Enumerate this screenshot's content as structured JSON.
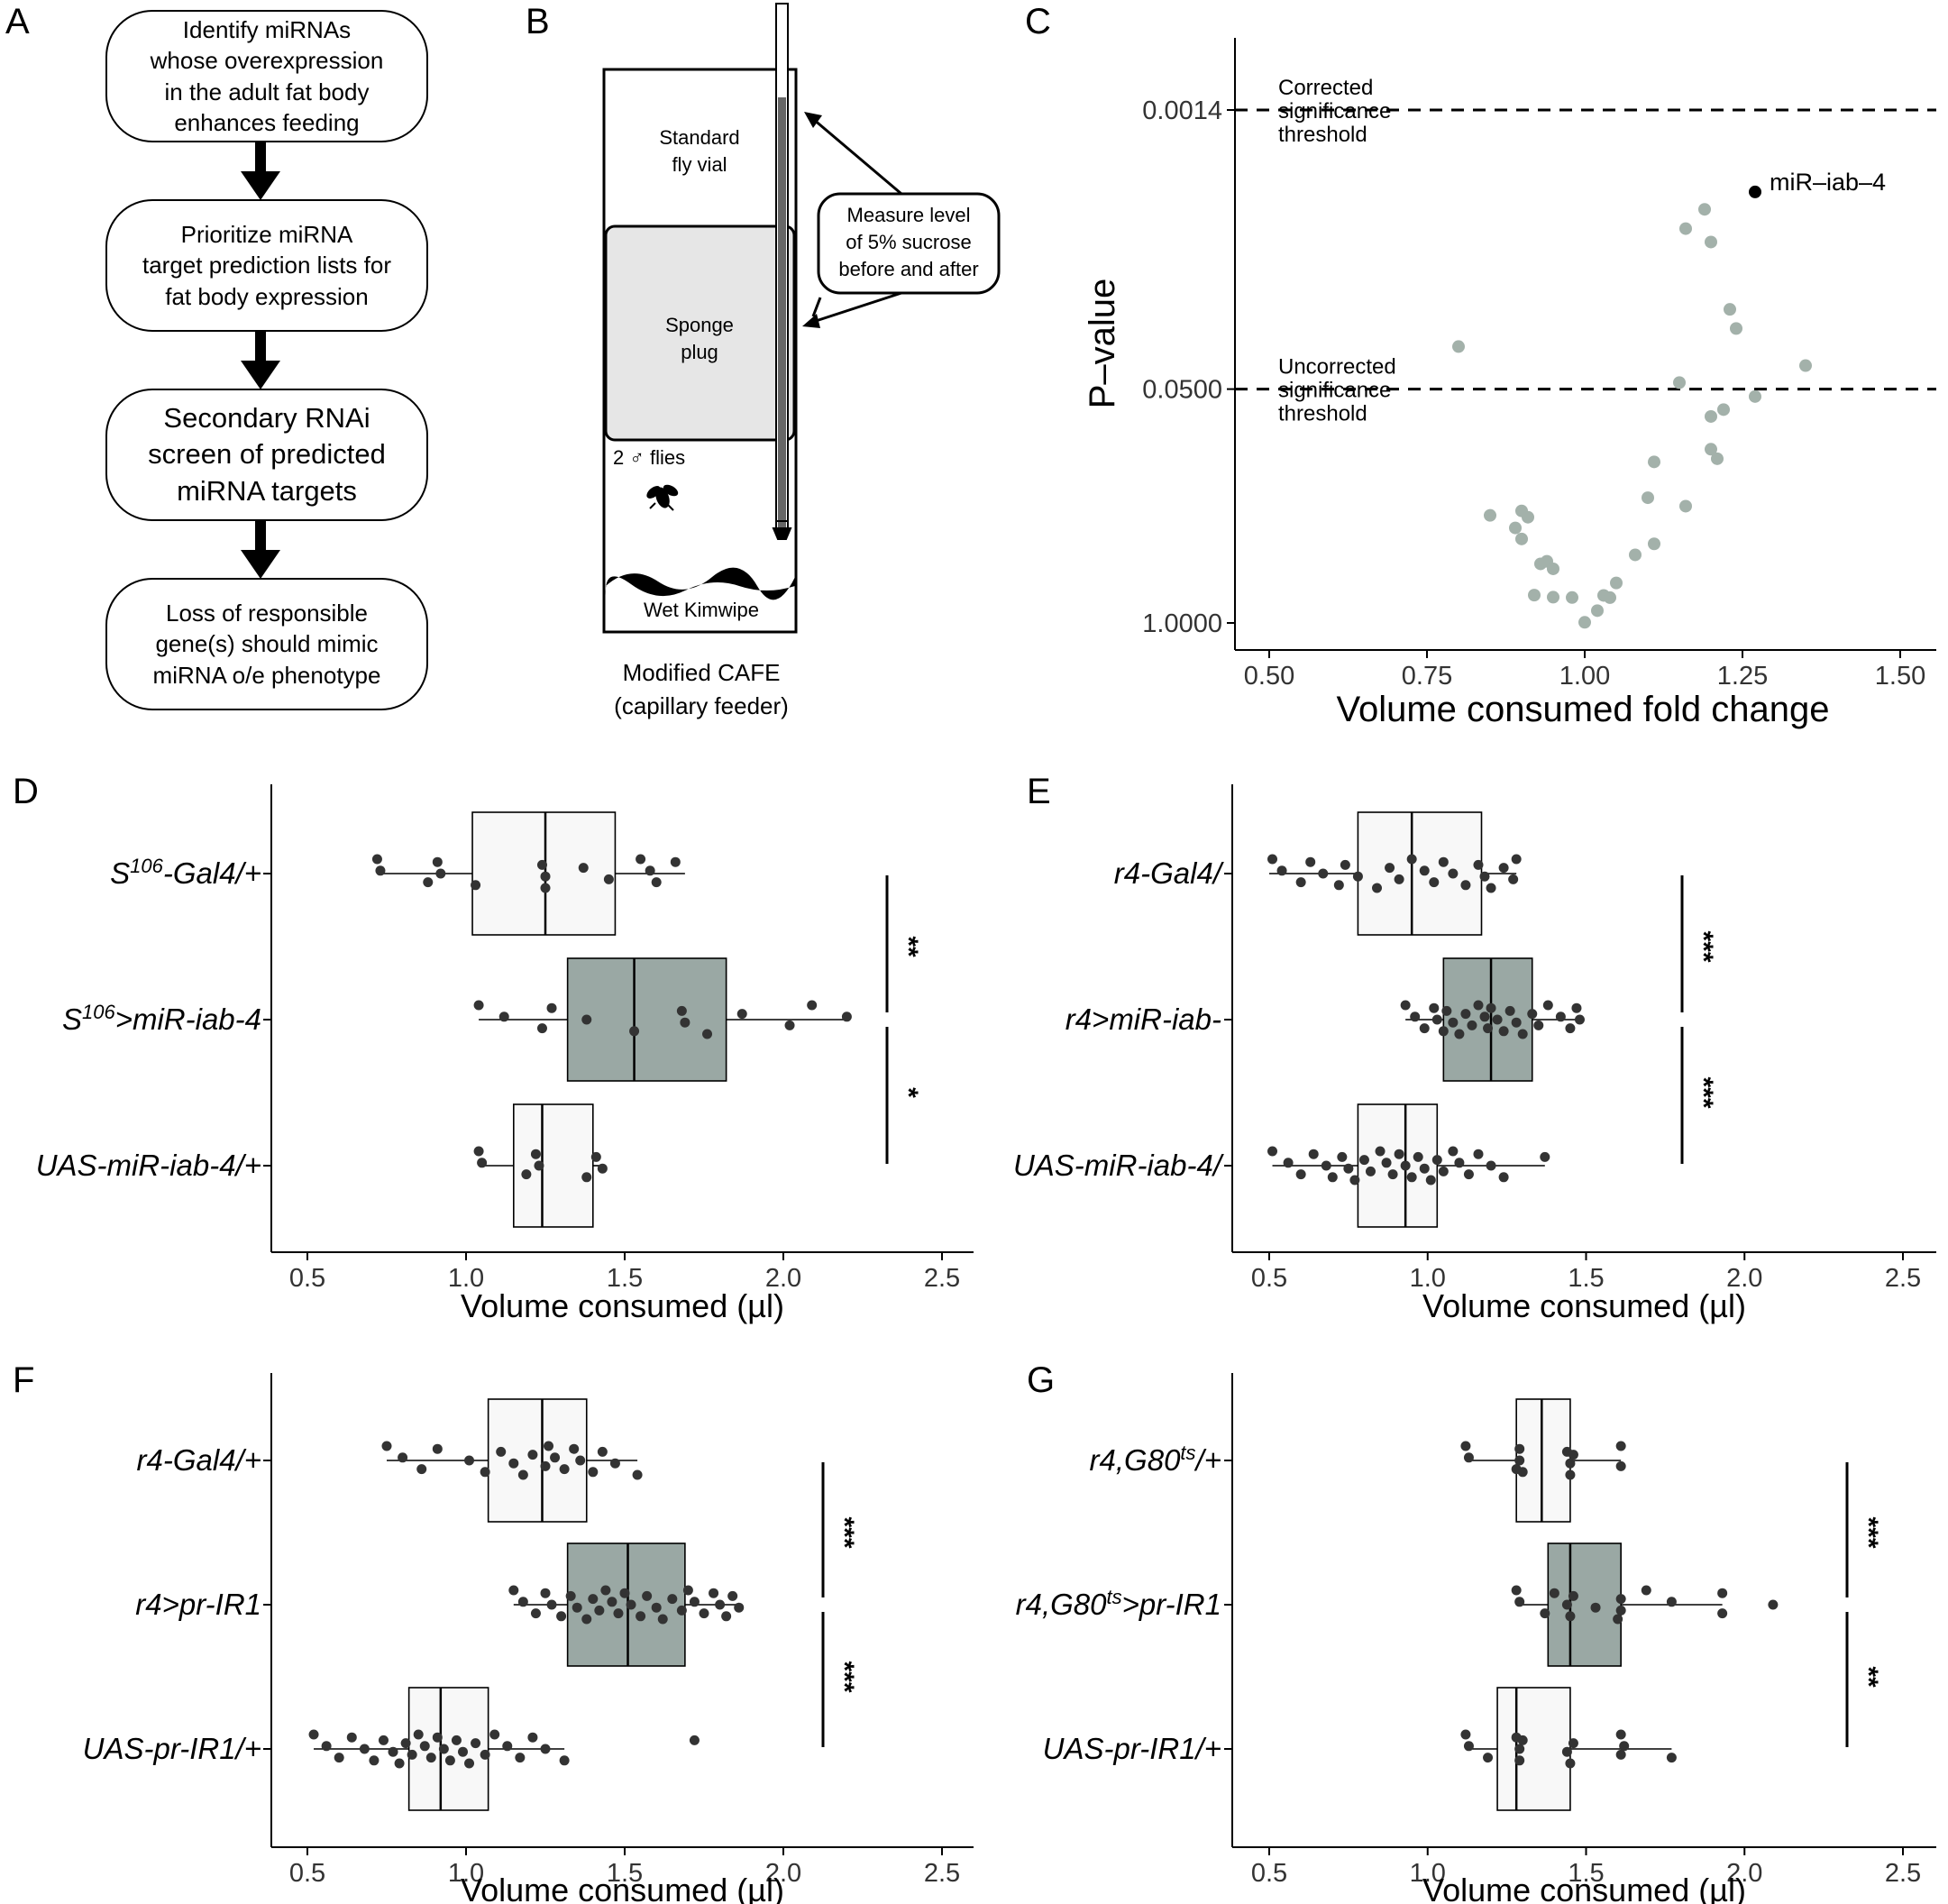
{
  "panels": {
    "A": "A",
    "B": "B",
    "C": "C",
    "D": "D",
    "E": "E",
    "F": "F",
    "G": "G"
  },
  "panel_a": {
    "steps": [
      "Identify miRNAs\nwhose overexpression\nin the adult fat body\nenhances feeding",
      "Prioritize miRNA\ntarget prediction lists for\nfat body expression",
      "Secondary RNAi\nscreen of predicted\nmiRNA targets",
      "Loss of responsible\ngene(s) should mimic\nmiRNA o/e phenotype"
    ]
  },
  "panel_b": {
    "vial_label": [
      "Standard",
      "fly vial"
    ],
    "sponge_label": [
      "Sponge",
      "plug"
    ],
    "callout": [
      "Measure level",
      "of 5% sucrose",
      "before and after"
    ],
    "flies_label": "2 ♂ flies",
    "kimwipe_label": "Wet Kimwipe",
    "caption": [
      "Modified CAFE",
      "(capillary feeder)"
    ]
  },
  "colors": {
    "scatter_point": "#a3b1aa",
    "highlight_point": "#000000",
    "gray_box": "#9aa8a4",
    "light_box": "#f8f8f8",
    "jitter_point": "#333333"
  },
  "chart_data": [
    {
      "id": "C",
      "type": "scatter",
      "xlabel": "Volume consumed fold change",
      "ylabel": "P–value",
      "xlim": [
        0.5,
        1.5
      ],
      "xticks": [
        0.5,
        0.75,
        1.0,
        1.25,
        1.5
      ],
      "xtick_labels": [
        "0.50",
        "0.75",
        "1.00",
        "1.25",
        "1.50"
      ],
      "y_scale": "log",
      "yticks": [
        0.0014,
        0.05,
        1.0
      ],
      "ytick_labels": [
        "0.0014",
        "0.0500",
        "1.0000"
      ],
      "thresholds": [
        {
          "value": 0.0014,
          "label": [
            "Corrected",
            "significance",
            "threshold"
          ]
        },
        {
          "value": 0.05,
          "label": [
            "Uncorrected",
            "significance",
            "threshold"
          ]
        }
      ],
      "highlight": {
        "x": 1.27,
        "y": 0.004,
        "label": "miR–iab–4"
      },
      "points": [
        [
          0.8,
          0.029
        ],
        [
          1.16,
          0.0064
        ],
        [
          1.19,
          0.005
        ],
        [
          1.2,
          0.0076
        ],
        [
          1.23,
          0.018
        ],
        [
          1.24,
          0.023
        ],
        [
          1.35,
          0.037
        ],
        [
          1.15,
          0.046
        ],
        [
          1.22,
          0.065
        ],
        [
          1.27,
          0.055
        ],
        [
          1.2,
          0.071
        ],
        [
          1.2,
          0.108
        ],
        [
          1.21,
          0.122
        ],
        [
          1.11,
          0.127
        ],
        [
          1.1,
          0.201
        ],
        [
          1.16,
          0.224
        ],
        [
          0.85,
          0.252
        ],
        [
          0.9,
          0.238
        ],
        [
          0.91,
          0.258
        ],
        [
          0.89,
          0.296
        ],
        [
          0.9,
          0.341
        ],
        [
          1.11,
          0.363
        ],
        [
          0.93,
          0.469
        ],
        [
          0.94,
          0.454
        ],
        [
          0.95,
          0.5
        ],
        [
          1.08,
          0.418
        ],
        [
          1.05,
          0.599
        ],
        [
          0.92,
          0.7
        ],
        [
          0.95,
          0.719
        ],
        [
          0.98,
          0.722
        ],
        [
          1.03,
          0.703
        ],
        [
          1.04,
          0.723
        ],
        [
          1.02,
          0.854
        ],
        [
          1.0,
          0.992
        ]
      ]
    },
    {
      "id": "D",
      "type": "boxplot",
      "xlabel": "Volume consumed (µl)",
      "xlim": [
        0.4,
        2.6
      ],
      "xticks": [
        0.5,
        1.0,
        1.5,
        2.0,
        2.5
      ],
      "xtick_labels": [
        "0.5",
        "1.0",
        "1.5",
        "2.0",
        "2.5"
      ],
      "groups": [
        {
          "label_parts": [
            [
              "S",
              0
            ],
            [
              "106",
              1
            ],
            [
              "-Gal4/+",
              0
            ]
          ],
          "q1": 1.02,
          "median": 1.25,
          "q3": 1.47,
          "whisker": [
            0.72,
            1.69
          ],
          "fill": "light",
          "points": [
            0.72,
            0.73,
            0.88,
            0.91,
            0.92,
            1.03,
            1.24,
            1.25,
            1.25,
            1.37,
            1.45,
            1.55,
            1.58,
            1.6,
            1.66
          ]
        },
        {
          "label_parts": [
            [
              "S",
              0
            ],
            [
              "106",
              1
            ],
            [
              ">miR-iab-4",
              0
            ]
          ],
          "q1": 1.32,
          "median": 1.53,
          "q3": 1.82,
          "whisker": [
            1.04,
            2.2
          ],
          "fill": "gray",
          "points": [
            1.04,
            1.12,
            1.24,
            1.27,
            1.38,
            1.53,
            1.68,
            1.69,
            1.76,
            1.87,
            2.02,
            2.09,
            2.2
          ]
        },
        {
          "label_parts": [
            [
              "UAS-miR-iab-4/+",
              0
            ]
          ],
          "q1": 1.15,
          "median": 1.24,
          "q3": 1.4,
          "whisker": [
            1.04,
            1.44
          ],
          "fill": "light",
          "points": [
            1.04,
            1.05,
            1.19,
            1.22,
            1.23,
            1.38,
            1.41,
            1.43
          ]
        }
      ],
      "significance": [
        {
          "from": 0,
          "to": 1,
          "label": "**"
        },
        {
          "from": 1,
          "to": 2,
          "label": "*"
        }
      ]
    },
    {
      "id": "E",
      "type": "boxplot",
      "xlabel": "Volume consumed (µl)",
      "xlim": [
        0.4,
        2.6
      ],
      "xticks": [
        0.5,
        1.0,
        1.5,
        2.0,
        2.5
      ],
      "xtick_labels": [
        "0.5",
        "1.0",
        "1.5",
        "2.0",
        "2.5"
      ],
      "groups": [
        {
          "label_parts": [
            [
              "r4-Gal4/",
              0
            ]
          ],
          "q1": 0.78,
          "median": 0.95,
          "q3": 1.17,
          "whisker": [
            0.5,
            1.28
          ],
          "fill": "light",
          "points": [
            0.51,
            0.54,
            0.6,
            0.63,
            0.67,
            0.72,
            0.74,
            0.78,
            0.84,
            0.88,
            0.91,
            0.95,
            0.99,
            1.02,
            1.05,
            1.08,
            1.12,
            1.16,
            1.18,
            1.2,
            1.24,
            1.27,
            1.28
          ]
        },
        {
          "label_parts": [
            [
              "r4>miR-iab-",
              0
            ]
          ],
          "q1": 1.05,
          "median": 1.2,
          "q3": 1.33,
          "whisker": [
            0.93,
            1.48
          ],
          "fill": "gray",
          "points": [
            0.93,
            0.96,
            0.99,
            1.02,
            1.03,
            1.05,
            1.06,
            1.08,
            1.1,
            1.12,
            1.14,
            1.16,
            1.18,
            1.19,
            1.2,
            1.22,
            1.24,
            1.26,
            1.28,
            1.3,
            1.33,
            1.35,
            1.38,
            1.42,
            1.45,
            1.47,
            1.48
          ]
        },
        {
          "label_parts": [
            [
              "UAS-miR-iab-4/",
              0
            ]
          ],
          "q1": 0.78,
          "median": 0.93,
          "q3": 1.03,
          "whisker": [
            0.51,
            1.37
          ],
          "fill": "light",
          "points": [
            0.51,
            0.56,
            0.6,
            0.64,
            0.68,
            0.7,
            0.73,
            0.75,
            0.77,
            0.8,
            0.82,
            0.85,
            0.87,
            0.89,
            0.91,
            0.93,
            0.95,
            0.97,
            0.99,
            1.01,
            1.03,
            1.05,
            1.08,
            1.1,
            1.13,
            1.16,
            1.2,
            1.24,
            1.37
          ]
        }
      ],
      "significance": [
        {
          "from": 0,
          "to": 1,
          "label": "***"
        },
        {
          "from": 1,
          "to": 2,
          "label": "***"
        }
      ]
    },
    {
      "id": "F",
      "type": "boxplot",
      "xlabel": "Volume consumed (µl)",
      "xlim": [
        0.4,
        2.6
      ],
      "xticks": [
        0.5,
        1.0,
        1.5,
        2.0,
        2.5
      ],
      "xtick_labels": [
        "0.5",
        "1.0",
        "1.5",
        "2.0",
        "2.5"
      ],
      "groups": [
        {
          "label_parts": [
            [
              "r4-Gal4/+",
              0
            ]
          ],
          "q1": 1.07,
          "median": 1.24,
          "q3": 1.38,
          "whisker": [
            0.75,
            1.54
          ],
          "fill": "light",
          "points": [
            0.75,
            0.8,
            0.86,
            0.91,
            1.01,
            1.06,
            1.11,
            1.15,
            1.18,
            1.21,
            1.25,
            1.26,
            1.28,
            1.31,
            1.34,
            1.36,
            1.4,
            1.43,
            1.47,
            1.54
          ]
        },
        {
          "label_parts": [
            [
              "r4>pr-IR1",
              0
            ]
          ],
          "q1": 1.32,
          "median": 1.51,
          "q3": 1.69,
          "whisker": [
            1.15,
            1.86
          ],
          "fill": "gray",
          "points": [
            1.15,
            1.18,
            1.22,
            1.25,
            1.27,
            1.3,
            1.33,
            1.35,
            1.38,
            1.4,
            1.42,
            1.44,
            1.46,
            1.48,
            1.5,
            1.52,
            1.55,
            1.57,
            1.6,
            1.62,
            1.65,
            1.68,
            1.7,
            1.72,
            1.75,
            1.78,
            1.8,
            1.82,
            1.84,
            1.86
          ]
        },
        {
          "label_parts": [
            [
              "UAS-pr-IR1/+",
              0
            ]
          ],
          "q1": 0.82,
          "median": 0.92,
          "q3": 1.07,
          "whisker": [
            0.52,
            1.31
          ],
          "fill": "light",
          "points": [
            0.52,
            0.56,
            0.6,
            0.64,
            0.68,
            0.71,
            0.74,
            0.77,
            0.79,
            0.81,
            0.83,
            0.85,
            0.87,
            0.89,
            0.91,
            0.93,
            0.95,
            0.97,
            0.99,
            1.01,
            1.03,
            1.06,
            1.09,
            1.13,
            1.17,
            1.21,
            1.25,
            1.31,
            1.72
          ]
        }
      ],
      "significance": [
        {
          "from": 0,
          "to": 1,
          "label": "***"
        },
        {
          "from": 1,
          "to": 2,
          "label": "***"
        }
      ]
    },
    {
      "id": "G",
      "type": "boxplot",
      "xlabel": "Volume consumed (µl)",
      "xlim": [
        0.4,
        2.6
      ],
      "xticks": [
        0.5,
        1.0,
        1.5,
        2.0,
        2.5
      ],
      "xtick_labels": [
        "0.5",
        "1.0",
        "1.5",
        "2.0",
        "2.5"
      ],
      "groups": [
        {
          "label_parts": [
            [
              "r4,G80",
              0
            ],
            [
              "ts",
              1
            ],
            [
              "/+",
              0
            ]
          ],
          "q1": 1.28,
          "median": 1.36,
          "q3": 1.45,
          "whisker": [
            1.12,
            1.61
          ],
          "fill": "light",
          "points": [
            1.12,
            1.13,
            1.28,
            1.29,
            1.29,
            1.3,
            1.44,
            1.45,
            1.45,
            1.46,
            1.61,
            1.61
          ]
        },
        {
          "label_parts": [
            [
              "r4,G80",
              0
            ],
            [
              "ts",
              1
            ],
            [
              ">pr-IR1",
              0
            ]
          ],
          "q1": 1.38,
          "median": 1.45,
          "q3": 1.61,
          "whisker": [
            1.28,
            1.93
          ],
          "fill": "gray",
          "points": [
            1.28,
            1.29,
            1.37,
            1.4,
            1.44,
            1.45,
            1.46,
            1.53,
            1.6,
            1.61,
            1.61,
            1.69,
            1.77,
            1.93,
            1.93,
            2.09
          ]
        },
        {
          "label_parts": [
            [
              "UAS-pr-IR1/+",
              0
            ]
          ],
          "q1": 1.22,
          "median": 1.28,
          "q3": 1.45,
          "whisker": [
            1.12,
            1.77
          ],
          "fill": "light",
          "points": [
            1.12,
            1.13,
            1.19,
            1.28,
            1.29,
            1.29,
            1.3,
            1.44,
            1.45,
            1.46,
            1.61,
            1.61,
            1.62,
            1.77
          ]
        }
      ],
      "significance": [
        {
          "from": 0,
          "to": 1,
          "label": "***"
        },
        {
          "from": 1,
          "to": 2,
          "label": "**"
        }
      ]
    }
  ]
}
